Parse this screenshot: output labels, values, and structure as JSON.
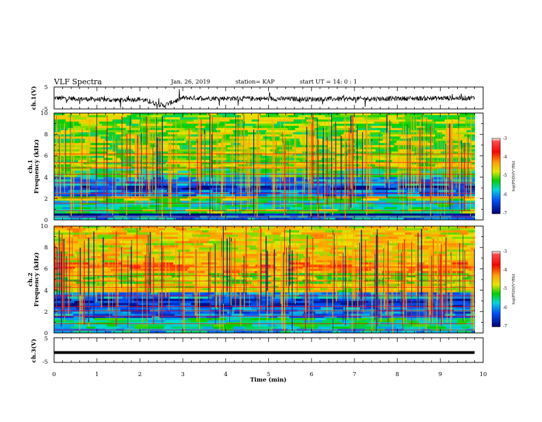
{
  "header": {
    "title": "VLF Spectra",
    "date": "Jan. 26, 2019",
    "station": "station= KAP",
    "start": "start  UT =   14: 0  : 1"
  },
  "chart_data": [
    {
      "type": "line",
      "panel": "ch1-waveform",
      "ylabel": "ch.1(V)",
      "ylim": [
        -5,
        5
      ],
      "yticks": [
        "5",
        "-5"
      ],
      "x_range_min": [
        0,
        9.8
      ],
      "note_values": "noisy trace around 0 V with a dip near 2.6 min",
      "features": [
        {
          "x": 0.0,
          "y": 0.0
        },
        {
          "x": 1.5,
          "y": -1.0
        },
        {
          "x": 2.0,
          "y": -0.5
        },
        {
          "x": 2.55,
          "y": -3.5
        },
        {
          "x": 3.0,
          "y": 0.0
        },
        {
          "x": 6.0,
          "y": -0.5
        },
        {
          "x": 9.8,
          "y": 0.0
        }
      ],
      "color": "#000000"
    },
    {
      "type": "heatmap",
      "panel": "ch1-spectrogram",
      "ylabel": [
        "ch.1",
        "Frequency  (kHz)"
      ],
      "ylim": [
        0,
        10
      ],
      "yticks": [
        "0",
        "2",
        "4",
        "6",
        "8",
        "10"
      ],
      "x_range_min": [
        0,
        9.8
      ],
      "colorbar": {
        "label": "log(PSD)(V²/Hz)",
        "range": [
          -7,
          -3
        ],
        "ticks": [
          "-3",
          "-4",
          "-5",
          "-6",
          "-7"
        ]
      },
      "bands_kHz": [
        {
          "from": 0.0,
          "to": 0.3,
          "level": -6.0
        },
        {
          "from": 0.3,
          "to": 0.6,
          "level": -7.0
        },
        {
          "from": 0.6,
          "to": 1.0,
          "level": -5.2
        },
        {
          "from": 1.0,
          "to": 1.7,
          "level": -5.6
        },
        {
          "from": 1.7,
          "to": 2.2,
          "level": -5.0
        },
        {
          "from": 2.2,
          "to": 2.7,
          "level": -6.2
        },
        {
          "from": 2.7,
          "to": 3.3,
          "level": -6.6
        },
        {
          "from": 3.3,
          "to": 3.9,
          "level": -6.0
        },
        {
          "from": 3.9,
          "to": 4.7,
          "level": -5.3
        },
        {
          "from": 4.7,
          "to": 5.3,
          "level": -4.8
        },
        {
          "from": 5.3,
          "to": 10.0,
          "level": -5.0
        }
      ]
    },
    {
      "type": "heatmap",
      "panel": "ch2-spectrogram",
      "ylabel": [
        "ch.2",
        "Frequency  (kHz)"
      ],
      "ylim": [
        0,
        10
      ],
      "yticks": [
        "0",
        "2",
        "4",
        "6",
        "8",
        "10"
      ],
      "x_range_min": [
        0,
        9.8
      ],
      "colorbar": {
        "label": "log(PSD)(V²/Hz)",
        "range": [
          -7,
          -3
        ],
        "ticks": [
          "-3",
          "-4",
          "-5",
          "-6",
          "-7"
        ]
      },
      "bands_kHz": [
        {
          "from": 0.0,
          "to": 0.5,
          "level": -5.8
        },
        {
          "from": 0.5,
          "to": 1.3,
          "level": -5.5
        },
        {
          "from": 1.3,
          "to": 2.4,
          "level": -6.2
        },
        {
          "from": 2.4,
          "to": 3.2,
          "level": -6.5
        },
        {
          "from": 3.2,
          "to": 3.8,
          "level": -6.0
        },
        {
          "from": 3.8,
          "to": 4.6,
          "level": -4.7
        },
        {
          "from": 4.6,
          "to": 5.6,
          "level": -4.9
        },
        {
          "from": 5.6,
          "to": 6.6,
          "level": -4.3
        },
        {
          "from": 6.6,
          "to": 10.0,
          "level": -4.6
        }
      ]
    },
    {
      "type": "line",
      "panel": "ch3-waveform",
      "ylabel": "ch.3(V)",
      "ylim": [
        -5,
        5
      ],
      "yticks": [
        "5",
        "-5"
      ],
      "x_range_min": [
        0,
        9.8
      ],
      "constant_value": -1,
      "color": "#000000"
    }
  ],
  "x_axis": {
    "label": "Time  (min)",
    "range": [
      0,
      10
    ],
    "ticks": [
      "0",
      "1",
      "2",
      "3",
      "4",
      "5",
      "6",
      "7",
      "8",
      "9",
      "10"
    ]
  }
}
